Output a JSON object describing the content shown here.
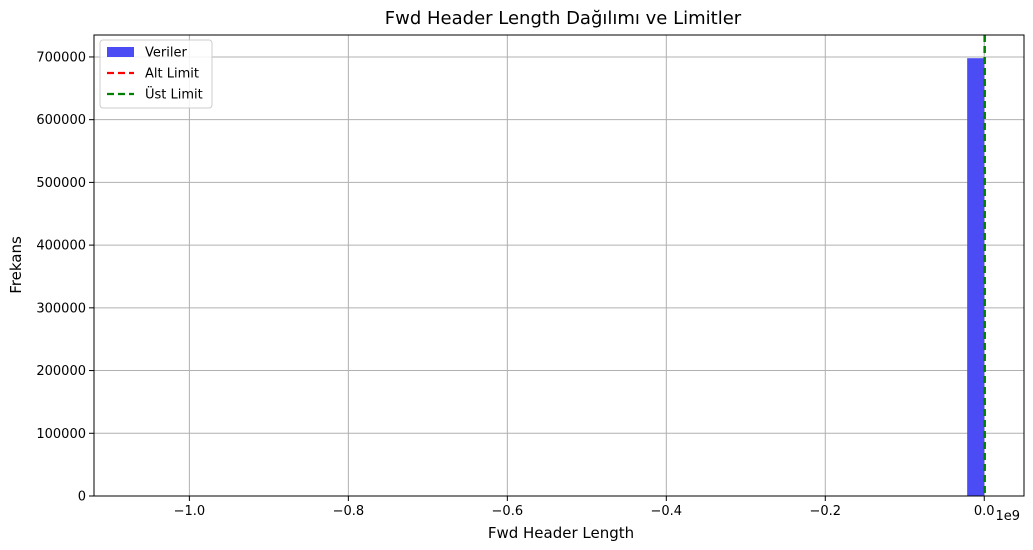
{
  "chart_data": {
    "type": "bar",
    "title": "Fwd Header Length Dağılımı ve Limitler",
    "xlabel": "Fwd Header Length",
    "ylabel": "Frekans",
    "x_offset_label": "1e9",
    "xlim": [
      -1.12,
      0.05
    ],
    "ylim": [
      0,
      735000
    ],
    "x_ticks": [
      -1.0,
      -0.8,
      -0.6,
      -0.4,
      -0.2,
      0.0
    ],
    "x_tick_labels": [
      "−1.0",
      "−0.8",
      "−0.6",
      "−0.4",
      "−0.2",
      "0.0"
    ],
    "y_ticks": [
      0,
      100000,
      200000,
      300000,
      400000,
      500000,
      600000,
      700000
    ],
    "y_tick_labels": [
      "0",
      "100000",
      "200000",
      "300000",
      "400000",
      "500000",
      "600000",
      "700000"
    ],
    "grid": true,
    "legend_position": "top-left",
    "bars": [
      {
        "x_start": -0.0215,
        "x_end": 0.0,
        "value": 698000
      }
    ],
    "vlines": [
      {
        "name": "Alt Limit",
        "x": 0.0003,
        "color": "#ff0000",
        "style": "dashed"
      },
      {
        "name": "Üst Limit",
        "x": 0.0007,
        "color": "#008000",
        "style": "dashed"
      }
    ],
    "series": [
      {
        "name": "Veriler",
        "kind": "bar",
        "color": "#4c4cf5"
      },
      {
        "name": "Alt Limit",
        "kind": "line",
        "color": "#ff0000"
      },
      {
        "name": "Üst Limit",
        "kind": "line",
        "color": "#008000"
      }
    ]
  }
}
